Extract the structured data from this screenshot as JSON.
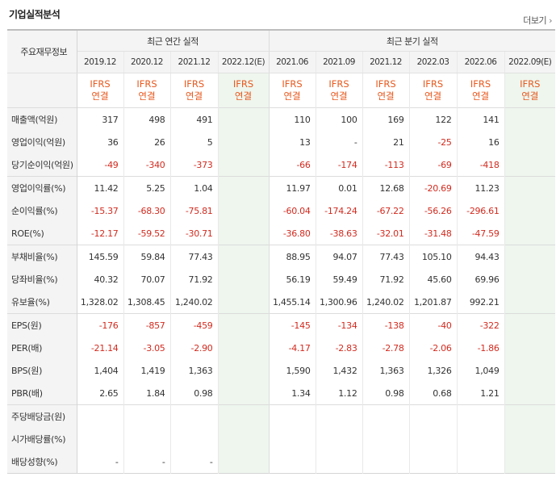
{
  "header": {
    "title": "기업실적분석",
    "more_label": "더보기"
  },
  "table": {
    "corner_label": "주요재무정보",
    "groups": [
      {
        "label": "최근 연간 실적"
      },
      {
        "label": "최근 분기 실적"
      }
    ],
    "periods": [
      "2019.12",
      "2020.12",
      "2021.12",
      "2022.12(E)",
      "2021.06",
      "2021.09",
      "2021.12",
      "2022.03",
      "2022.06",
      "2022.09(E)"
    ],
    "ifrs_top": "IFRS",
    "ifrs_bottom": "연결",
    "rows": [
      {
        "label": "매출액(억원)",
        "values": [
          "317",
          "498",
          "491",
          "",
          "110",
          "100",
          "169",
          "122",
          "141",
          ""
        ]
      },
      {
        "label": "영업이익(억원)",
        "values": [
          "36",
          "26",
          "5",
          "",
          "13",
          "-",
          "21",
          "-25",
          "16",
          ""
        ]
      },
      {
        "label": "당기순이익(억원)",
        "values": [
          "-49",
          "-340",
          "-373",
          "",
          "-66",
          "-174",
          "-113",
          "-69",
          "-418",
          ""
        ]
      },
      {
        "label": "영업이익률(%)",
        "values": [
          "11.42",
          "5.25",
          "1.04",
          "",
          "11.97",
          "0.01",
          "12.68",
          "-20.69",
          "11.23",
          ""
        ]
      },
      {
        "label": "순이익률(%)",
        "values": [
          "-15.37",
          "-68.30",
          "-75.81",
          "",
          "-60.04",
          "-174.24",
          "-67.22",
          "-56.26",
          "-296.61",
          ""
        ]
      },
      {
        "label": "ROE(%)",
        "values": [
          "-12.17",
          "-59.52",
          "-30.71",
          "",
          "-36.80",
          "-38.63",
          "-32.01",
          "-31.48",
          "-47.59",
          ""
        ]
      },
      {
        "label": "부채비율(%)",
        "values": [
          "145.59",
          "59.84",
          "77.43",
          "",
          "88.95",
          "94.07",
          "77.43",
          "105.10",
          "94.43",
          ""
        ]
      },
      {
        "label": "당좌비율(%)",
        "values": [
          "40.32",
          "70.07",
          "71.92",
          "",
          "56.19",
          "59.49",
          "71.92",
          "45.60",
          "69.96",
          ""
        ]
      },
      {
        "label": "유보율(%)",
        "values": [
          "1,328.02",
          "1,308.45",
          "1,240.02",
          "",
          "1,455.14",
          "1,300.96",
          "1,240.02",
          "1,201.87",
          "992.21",
          ""
        ]
      },
      {
        "label": "EPS(원)",
        "values": [
          "-176",
          "-857",
          "-459",
          "",
          "-145",
          "-134",
          "-138",
          "-40",
          "-322",
          ""
        ]
      },
      {
        "label": "PER(배)",
        "values": [
          "-21.14",
          "-3.05",
          "-2.90",
          "",
          "-4.17",
          "-2.83",
          "-2.78",
          "-2.06",
          "-1.86",
          ""
        ]
      },
      {
        "label": "BPS(원)",
        "values": [
          "1,404",
          "1,419",
          "1,363",
          "",
          "1,590",
          "1,432",
          "1,363",
          "1,326",
          "1,049",
          ""
        ]
      },
      {
        "label": "PBR(배)",
        "values": [
          "2.65",
          "1.84",
          "0.98",
          "",
          "1.34",
          "1.12",
          "0.98",
          "0.68",
          "1.21",
          ""
        ]
      },
      {
        "label": "주당배당금(원)",
        "values": [
          "",
          "",
          "",
          "",
          "",
          "",
          "",
          "",
          "",
          ""
        ]
      },
      {
        "label": "시가배당률(%)",
        "values": [
          "",
          "",
          "",
          "",
          "",
          "",
          "",
          "",
          "",
          ""
        ]
      },
      {
        "label": "배당성향(%)",
        "values": [
          "-",
          "-",
          "-",
          "",
          "",
          "",
          "",
          "",
          "",
          ""
        ]
      }
    ],
    "colors": {
      "negative": "#d22b1f",
      "ifrs": "#e8591e",
      "estimate_bg": "#eef6ee"
    }
  }
}
